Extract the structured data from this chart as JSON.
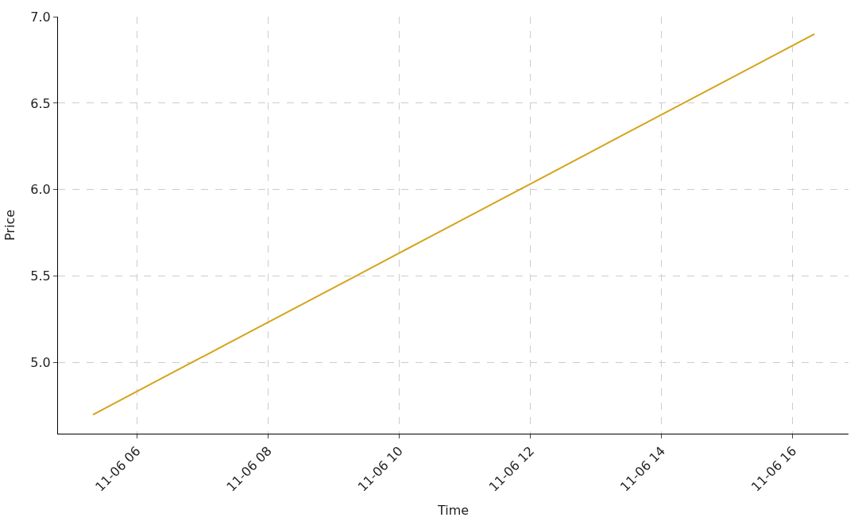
{
  "chart_data": {
    "type": "line",
    "xlabel": "Time",
    "ylabel": "Price",
    "x": [
      "--11-06T05:20",
      "--11-06T06:20",
      "--11-06T07:20",
      "--11-06T08:20",
      "--11-06T09:20",
      "--11-06T10:20",
      "--11-06T11:20",
      "--11-06T12:20",
      "--11-06T13:20",
      "--11-06T14:20",
      "--11-06T15:20",
      "--11-06T16:20"
    ],
    "series": [
      {
        "color": "#d4a419",
        "values": [
          4.7,
          4.9,
          5.1,
          5.3,
          5.5,
          5.7,
          5.9,
          6.1,
          6.3,
          6.5,
          6.7,
          6.9
        ]
      }
    ],
    "xlim": [
      "--11-06T04:48",
      "--11-06T16:51"
    ],
    "ylim": [
      4.59,
      7.0
    ],
    "xticks": [
      {
        "value": "--11-06T06:00",
        "label": "11-06 06"
      },
      {
        "value": "--11-06T08:00",
        "label": "11-06 08"
      },
      {
        "value": "--11-06T10:00",
        "label": "11-06 10"
      },
      {
        "value": "--11-06T12:00",
        "label": "11-06 12"
      },
      {
        "value": "--11-06T14:00",
        "label": "11-06 14"
      },
      {
        "value": "--11-06T16:00",
        "label": "11-06 16"
      }
    ],
    "yticks": [
      {
        "value": 5,
        "label": "5.0"
      },
      5.5,
      {
        "value": 6,
        "label": "6.0"
      },
      6.5,
      {
        "value": 7,
        "label": "7.0"
      }
    ],
    "grid": true,
    "marker": "none",
    "line_style": "solid"
  }
}
